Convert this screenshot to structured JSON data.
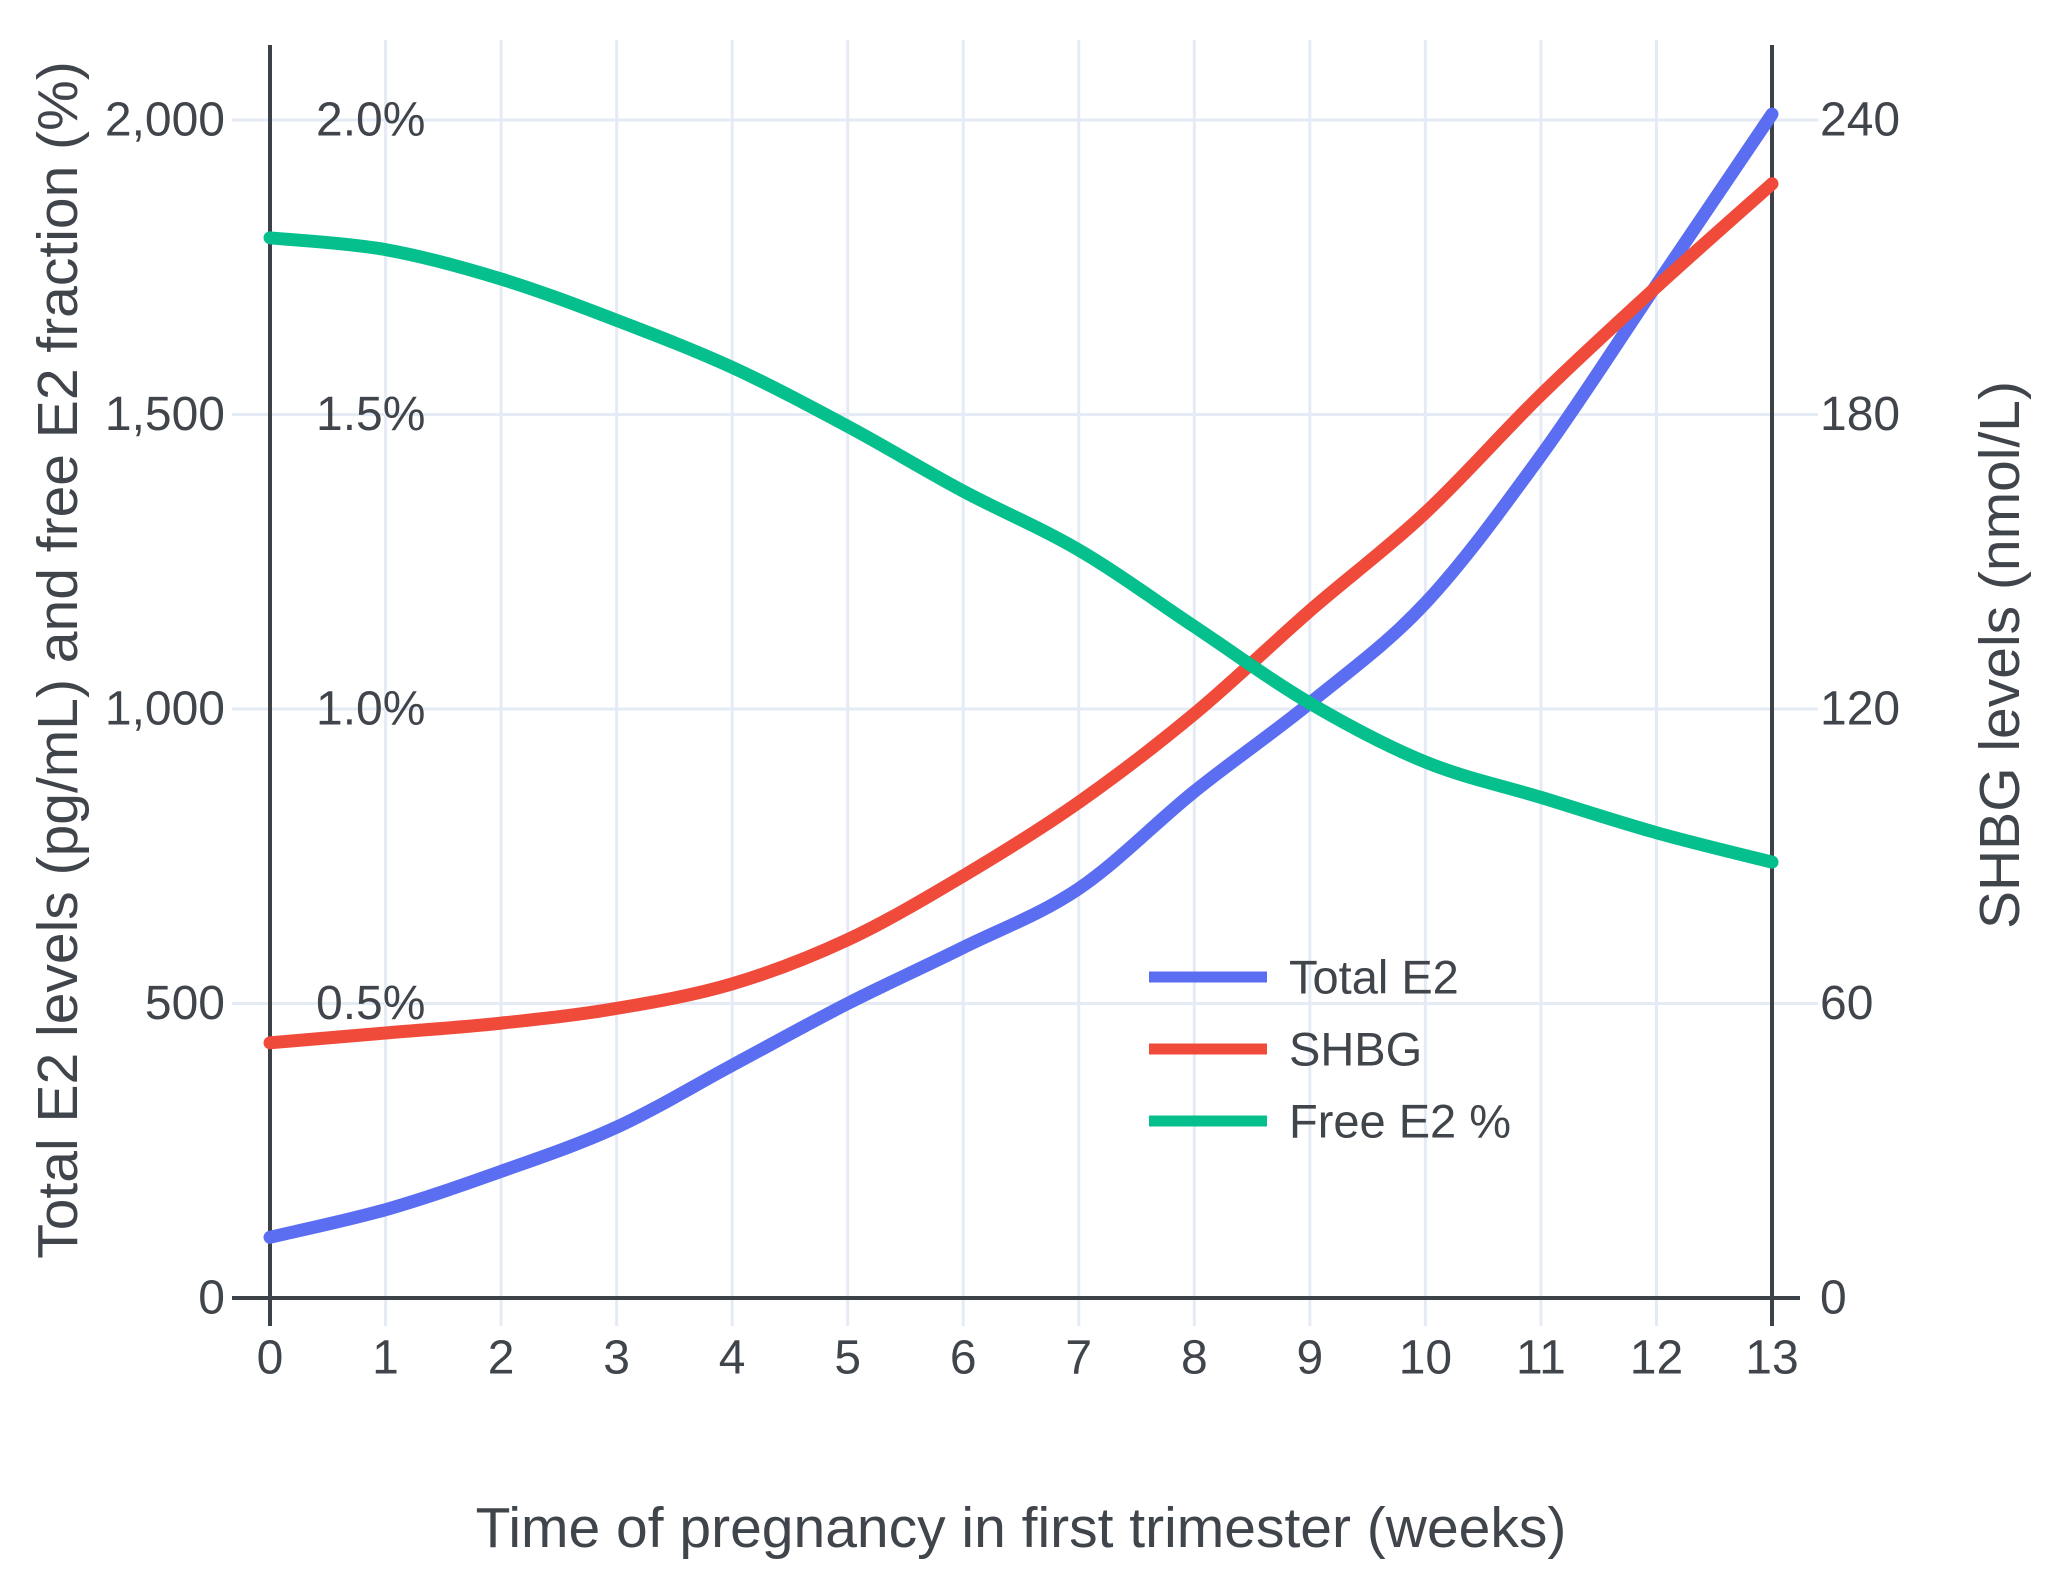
{
  "chart_data": {
    "type": "line",
    "title": "",
    "xlabel": "Time of pregnancy in first trimester (weeks)",
    "ylabel_left": "Total E2 levels (pg/mL) and free E2 fraction (%)",
    "ylabel_right": "SHBG levels (nmol/L)",
    "x_weeks": [
      0,
      1,
      2,
      3,
      4,
      5,
      6,
      7,
      8,
      9,
      10,
      11,
      12,
      13
    ],
    "series": [
      {
        "name": "Total E2",
        "axis": "left",
        "unit": "pg/mL",
        "color": "#5b6ef2",
        "values": [
          103,
          150,
          215,
          290,
          395,
          500,
          595,
          695,
          860,
          1010,
          1180,
          1430,
          1720,
          2010
        ]
      },
      {
        "name": "SHBG",
        "axis": "right",
        "unit": "nmol/L",
        "color": "#f04a3b",
        "values": [
          52,
          54,
          56,
          59,
          64,
          73,
          86,
          101,
          119,
          140,
          160,
          184,
          206,
          227
        ]
      },
      {
        "name": "Free E2 %",
        "axis": "percent",
        "unit": "%",
        "color": "#05bf8d",
        "values": [
          1.8,
          1.78,
          1.73,
          1.66,
          1.58,
          1.48,
          1.37,
          1.27,
          1.14,
          1.01,
          0.91,
          0.85,
          0.79,
          0.74
        ]
      }
    ],
    "axes": {
      "left": {
        "range": [
          0,
          2000
        ],
        "ticks": [
          "0",
          "500",
          "1,000",
          "1,500",
          "2,000"
        ],
        "tick_values": [
          0,
          500,
          1000,
          1500,
          2000
        ]
      },
      "percent": {
        "range": [
          0,
          2.0
        ],
        "ticks": [
          "0.5%",
          "1.0%",
          "1.5%",
          "2.0%"
        ],
        "tick_values": [
          0.5,
          1.0,
          1.5,
          2.0
        ]
      },
      "right": {
        "range": [
          0,
          240
        ],
        "ticks": [
          "0",
          "60",
          "120",
          "180",
          "240"
        ],
        "tick_values": [
          0,
          60,
          120,
          180,
          240
        ]
      },
      "x": {
        "range": [
          0,
          13
        ],
        "ticks": [
          "0",
          "1",
          "2",
          "3",
          "4",
          "5",
          "6",
          "7",
          "8",
          "9",
          "10",
          "11",
          "12",
          "13"
        ],
        "tick_values": [
          0,
          1,
          2,
          3,
          4,
          5,
          6,
          7,
          8,
          9,
          10,
          11,
          12,
          13
        ]
      }
    },
    "legend": {
      "entries": [
        "Total E2",
        "SHBG",
        "Free E2 %"
      ],
      "position": "inside-right-middle"
    },
    "grid": true,
    "colors": {
      "grid": "#e5ebf5",
      "axis": "#3d4248",
      "text": "#40454b"
    }
  }
}
